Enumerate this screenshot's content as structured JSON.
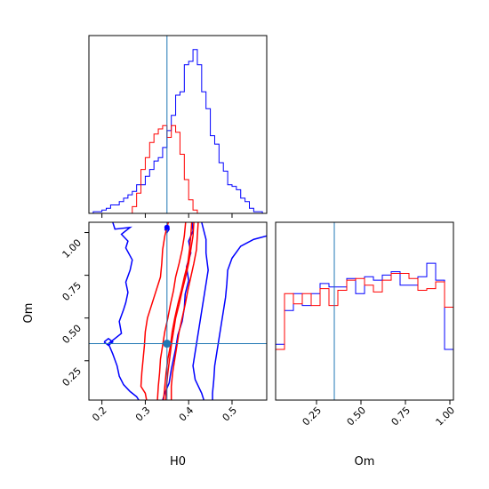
{
  "chart_data": {
    "type": "corner",
    "parameters": [
      "H0",
      "Om"
    ],
    "truths": {
      "H0": 0.35,
      "Om": 0.35
    },
    "colors": {
      "blue": "#0000ff",
      "red": "#ff0000",
      "truth": "#1f77b4"
    },
    "panels": {
      "hist_H0": {
        "xlim": [
          0.17,
          0.58
        ],
        "bins": [
          0.17,
          0.18,
          0.19,
          0.2,
          0.21,
          0.22,
          0.23,
          0.24,
          0.25,
          0.26,
          0.27,
          0.28,
          0.29,
          0.3,
          0.31,
          0.32,
          0.33,
          0.34,
          0.35,
          0.36,
          0.37,
          0.38,
          0.39,
          0.4,
          0.41,
          0.42,
          0.43,
          0.44,
          0.45,
          0.46,
          0.47,
          0.48,
          0.49,
          0.5,
          0.51,
          0.52,
          0.53,
          0.54,
          0.55,
          0.56,
          0.57,
          0.58
        ],
        "series": [
          {
            "color": "blue",
            "counts": [
              0.0,
              0.01,
              0.01,
              0.02,
              0.03,
              0.05,
              0.05,
              0.07,
              0.09,
              0.11,
              0.13,
              0.17,
              0.17,
              0.22,
              0.26,
              0.31,
              0.33,
              0.39,
              0.49,
              0.58,
              0.7,
              0.72,
              0.88,
              0.9,
              0.97,
              0.88,
              0.72,
              0.62,
              0.46,
              0.41,
              0.3,
              0.25,
              0.17,
              0.16,
              0.14,
              0.09,
              0.07,
              0.03,
              0.01,
              0.01,
              0.0
            ]
          },
          {
            "color": "red",
            "counts": [
              0,
              0,
              0,
              0,
              0,
              0,
              0,
              0,
              0,
              0,
              0.04,
              0.12,
              0.26,
              0.33,
              0.42,
              0.47,
              0.5,
              0.52,
              0.45,
              0.52,
              0.48,
              0.35,
              0.2,
              0.08,
              0.02,
              0,
              0,
              0,
              0,
              0,
              0,
              0,
              0,
              0,
              0,
              0,
              0,
              0,
              0,
              0,
              0
            ]
          }
        ]
      },
      "hist_Om": {
        "xlim": [
          0.02,
          1.02
        ],
        "bins": [
          0.02,
          0.045,
          0.07,
          0.095,
          0.12,
          0.145,
          0.17,
          0.195,
          0.22,
          0.245,
          0.27,
          0.295,
          0.32,
          0.345,
          0.37,
          0.395,
          0.42,
          0.445,
          0.47,
          0.495,
          0.52,
          0.545,
          0.57,
          0.595,
          0.62,
          0.645,
          0.67,
          0.695,
          0.72,
          0.745,
          0.77,
          0.795,
          0.82,
          0.845,
          0.87,
          0.895,
          0.92,
          0.945,
          0.97,
          0.995,
          1.02
        ],
        "series": [
          {
            "color": "blue",
            "counts": [
              0.33,
              0.33,
              0.53,
              0.53,
              0.63,
              0.63,
              0.56,
              0.56,
              0.63,
              0.63,
              0.69,
              0.69,
              0.67,
              0.67,
              0.67,
              0.67,
              0.72,
              0.72,
              0.63,
              0.63,
              0.73,
              0.73,
              0.71,
              0.71,
              0.74,
              0.74,
              0.76,
              0.76,
              0.68,
              0.68,
              0.68,
              0.68,
              0.73,
              0.73,
              0.81,
              0.81,
              0.71,
              0.71,
              0.3,
              0.3
            ]
          },
          {
            "color": "red",
            "counts": [
              0.3,
              0.3,
              0.63,
              0.63,
              0.57,
              0.57,
              0.63,
              0.63,
              0.56,
              0.56,
              0.66,
              0.66,
              0.56,
              0.56,
              0.65,
              0.65,
              0.71,
              0.71,
              0.72,
              0.72,
              0.68,
              0.68,
              0.64,
              0.64,
              0.71,
              0.71,
              0.75,
              0.75,
              0.75,
              0.75,
              0.72,
              0.72,
              0.65,
              0.65,
              0.66,
              0.66,
              0.7,
              0.7,
              0.55,
              0.55
            ]
          }
        ]
      },
      "joint": {
        "xlim": [
          0.17,
          0.58
        ],
        "ylim": [
          0.02,
          1.06
        ],
        "contours": [
          {
            "color": "blue",
            "points": [
              [
                0.225,
                1.06
              ],
              [
                0.23,
                1.02
              ],
              [
                0.265,
                1.03
              ],
              [
                0.245,
                0.99
              ],
              [
                0.26,
                0.95
              ],
              [
                0.255,
                0.91
              ],
              [
                0.27,
                0.84
              ],
              [
                0.265,
                0.78
              ],
              [
                0.255,
                0.71
              ],
              [
                0.26,
                0.65
              ],
              [
                0.255,
                0.59
              ],
              [
                0.25,
                0.55
              ],
              [
                0.24,
                0.48
              ],
              [
                0.245,
                0.41
              ],
              [
                0.215,
                0.35
              ],
              [
                0.225,
                0.29
              ],
              [
                0.235,
                0.22
              ],
              [
                0.24,
                0.16
              ],
              [
                0.25,
                0.11
              ],
              [
                0.265,
                0.07
              ],
              [
                0.28,
                0.04
              ],
              [
                0.285,
                0.02
              ]
            ]
          },
          {
            "color": "blue",
            "points": [
              [
                0.408,
                1.06
              ],
              [
                0.41,
                1.01
              ],
              [
                0.4,
                0.95
              ],
              [
                0.405,
                0.88
              ],
              [
                0.395,
                0.8
              ],
              [
                0.4,
                0.72
              ],
              [
                0.392,
                0.64
              ],
              [
                0.39,
                0.56
              ],
              [
                0.385,
                0.48
              ],
              [
                0.375,
                0.4
              ],
              [
                0.37,
                0.32
              ],
              [
                0.365,
                0.26
              ],
              [
                0.36,
                0.2
              ],
              [
                0.355,
                0.12
              ],
              [
                0.345,
                0.06
              ],
              [
                0.34,
                0.02
              ]
            ]
          },
          {
            "color": "blue",
            "points": [
              [
                0.43,
                1.06
              ],
              [
                0.44,
                0.96
              ],
              [
                0.44,
                0.88
              ],
              [
                0.445,
                0.78
              ],
              [
                0.44,
                0.7
              ],
              [
                0.435,
                0.62
              ],
              [
                0.43,
                0.54
              ],
              [
                0.425,
                0.46
              ],
              [
                0.42,
                0.38
              ],
              [
                0.415,
                0.3
              ],
              [
                0.41,
                0.22
              ],
              [
                0.415,
                0.14
              ],
              [
                0.43,
                0.06
              ],
              [
                0.435,
                0.02
              ]
            ]
          },
          {
            "color": "blue",
            "points": [
              [
                0.58,
                0.98
              ],
              [
                0.55,
                0.96
              ],
              [
                0.52,
                0.92
              ],
              [
                0.5,
                0.85
              ],
              [
                0.49,
                0.78
              ],
              [
                0.488,
                0.7
              ],
              [
                0.485,
                0.62
              ],
              [
                0.48,
                0.54
              ],
              [
                0.475,
                0.46
              ],
              [
                0.47,
                0.38
              ],
              [
                0.465,
                0.3
              ],
              [
                0.46,
                0.22
              ],
              [
                0.458,
                0.14
              ],
              [
                0.455,
                0.06
              ],
              [
                0.455,
                0.02
              ]
            ]
          },
          {
            "color": "blue",
            "points": [
              [
                0.205,
                0.36
              ],
              [
                0.215,
                0.38
              ],
              [
                0.225,
                0.36
              ],
              [
                0.215,
                0.34
              ],
              [
                0.205,
                0.36
              ]
            ]
          },
          {
            "color": "blue",
            "points": [
              [
                0.345,
                1.02
              ],
              [
                0.35,
                1.04
              ],
              [
                0.355,
                1.02
              ],
              [
                0.35,
                1.0
              ],
              [
                0.345,
                1.02
              ]
            ]
          },
          {
            "color": "red",
            "points": [
              [
                0.353,
                1.06
              ],
              [
                0.345,
                0.98
              ],
              [
                0.34,
                0.9
              ],
              [
                0.338,
                0.82
              ],
              [
                0.335,
                0.74
              ],
              [
                0.325,
                0.66
              ],
              [
                0.315,
                0.58
              ],
              [
                0.305,
                0.5
              ],
              [
                0.3,
                0.42
              ],
              [
                0.298,
                0.34
              ],
              [
                0.295,
                0.26
              ],
              [
                0.292,
                0.18
              ],
              [
                0.29,
                0.1
              ],
              [
                0.3,
                0.06
              ],
              [
                0.303,
                0.02
              ]
            ]
          },
          {
            "color": "red",
            "points": [
              [
                0.393,
                1.06
              ],
              [
                0.39,
                0.98
              ],
              [
                0.385,
                0.9
              ],
              [
                0.378,
                0.82
              ],
              [
                0.37,
                0.74
              ],
              [
                0.365,
                0.66
              ],
              [
                0.358,
                0.58
              ],
              [
                0.352,
                0.5
              ],
              [
                0.345,
                0.42
              ],
              [
                0.34,
                0.34
              ],
              [
                0.335,
                0.26
              ],
              [
                0.333,
                0.18
              ],
              [
                0.33,
                0.1
              ],
              [
                0.328,
                0.02
              ]
            ]
          },
          {
            "color": "red",
            "points": [
              [
                0.407,
                1.06
              ],
              [
                0.405,
                0.98
              ],
              [
                0.402,
                0.9
              ],
              [
                0.398,
                0.82
              ],
              [
                0.39,
                0.74
              ],
              [
                0.383,
                0.66
              ],
              [
                0.375,
                0.58
              ],
              [
                0.368,
                0.5
              ],
              [
                0.362,
                0.42
              ],
              [
                0.358,
                0.34
              ],
              [
                0.352,
                0.26
              ],
              [
                0.348,
                0.18
              ],
              [
                0.345,
                0.1
              ],
              [
                0.342,
                0.02
              ]
            ]
          },
          {
            "color": "red",
            "points": [
              [
                0.347,
                0.02
              ],
              [
                0.349,
                0.1
              ],
              [
                0.352,
                0.18
              ],
              [
                0.356,
                0.26
              ],
              [
                0.36,
                0.34
              ],
              [
                0.365,
                0.42
              ],
              [
                0.37,
                0.5
              ],
              [
                0.378,
                0.58
              ],
              [
                0.385,
                0.66
              ],
              [
                0.393,
                0.74
              ],
              [
                0.4,
                0.82
              ],
              [
                0.405,
                0.9
              ],
              [
                0.41,
                0.98
              ],
              [
                0.412,
                1.06
              ]
            ]
          },
          {
            "color": "red",
            "points": [
              [
                0.36,
                0.02
              ],
              [
                0.36,
                0.1
              ],
              [
                0.363,
                0.18
              ],
              [
                0.368,
                0.26
              ],
              [
                0.373,
                0.34
              ],
              [
                0.378,
                0.42
              ],
              [
                0.385,
                0.5
              ],
              [
                0.392,
                0.58
              ],
              [
                0.398,
                0.66
              ],
              [
                0.405,
                0.74
              ],
              [
                0.412,
                0.82
              ],
              [
                0.418,
                0.9
              ],
              [
                0.42,
                0.98
              ],
              [
                0.422,
                1.06
              ]
            ]
          }
        ],
        "markers": [
          {
            "color": "truth",
            "x": 0.35,
            "y": 0.35
          },
          {
            "color": "blue",
            "x": 0.35,
            "y": 1.03
          }
        ]
      }
    },
    "xticks": {
      "H0": {
        "values": [
          0.2,
          0.3,
          0.4,
          0.5
        ],
        "labels": [
          "0.2",
          "0.3",
          "0.4",
          "0.5"
        ]
      },
      "Om": {
        "values": [
          0.25,
          0.5,
          0.75,
          1.0
        ],
        "labels": [
          "0.25",
          "0.50",
          "0.75",
          "1.00"
        ]
      }
    },
    "yticks": {
      "Om": {
        "values": [
          0.25,
          0.5,
          0.75,
          1.0
        ],
        "labels": [
          "0.25",
          "0.50",
          "0.75",
          "1.00"
        ]
      }
    },
    "xlabels": {
      "H0": "H0",
      "Om": "Om"
    },
    "ylabels": {
      "Om": "Om"
    }
  }
}
